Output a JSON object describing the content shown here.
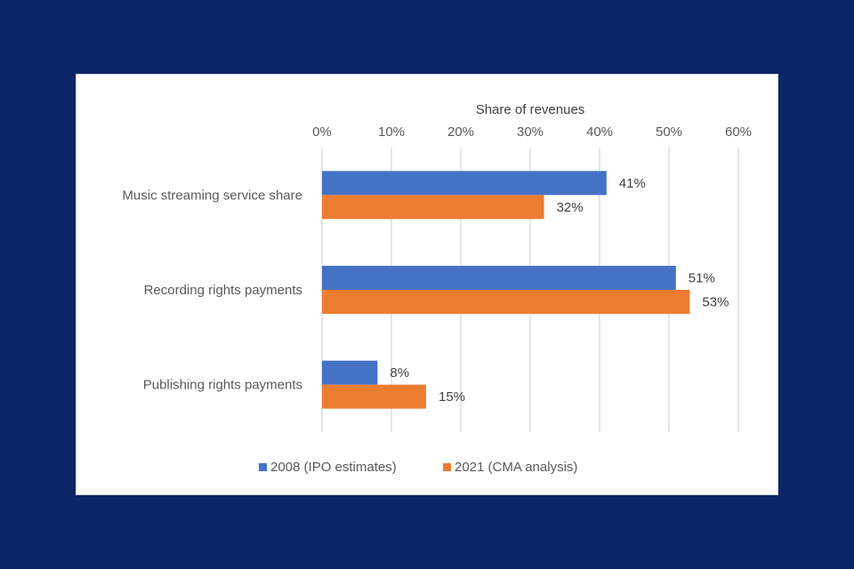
{
  "chart_data": {
    "type": "bar",
    "orientation": "horizontal",
    "title": "Share of revenues",
    "categories": [
      "Music streaming service share",
      "Recording rights payments",
      "Publishing rights payments"
    ],
    "series": [
      {
        "name": "2008 (IPO estimates)",
        "color": "#4472c4",
        "values": [
          41,
          51,
          8
        ]
      },
      {
        "name": "2021 (CMA analysis)",
        "color": "#ed7d31",
        "values": [
          32,
          53,
          15
        ]
      }
    ],
    "value_axis": {
      "min": 0,
      "max": 60,
      "step": 10,
      "ticks": [
        "0%",
        "10%",
        "20%",
        "30%",
        "40%",
        "50%",
        "60%"
      ],
      "position": "top"
    },
    "data_labels": [
      [
        "41%",
        "51%",
        "8%"
      ],
      [
        "32%",
        "53%",
        "15%"
      ]
    ],
    "gridlines": true,
    "legend_position": "bottom"
  },
  "colors": {
    "background": "#0a2669",
    "card": "#ffffff",
    "gridline": "#d9d9d9"
  }
}
